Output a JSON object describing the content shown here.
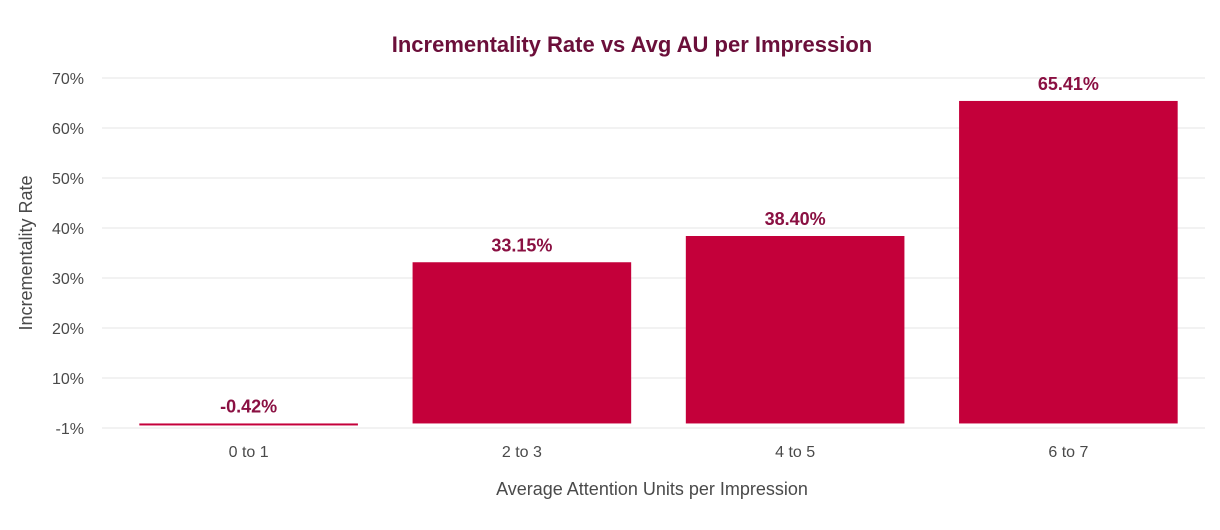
{
  "chart_data": {
    "type": "bar",
    "title": "Incrementality Rate vs Avg AU per Impression",
    "xlabel": "Average Attention Units per Impression",
    "ylabel": "Incrementality Rate",
    "categories": [
      "0 to 1",
      "2 to 3",
      "4 to 5",
      "6 to 7"
    ],
    "values": [
      -0.42,
      33.15,
      38.4,
      65.41
    ],
    "data_labels": [
      "-0.42%",
      "33.15%",
      "38.40%",
      "65.41%"
    ],
    "ylim": [
      -1,
      70
    ],
    "y_ticks": [
      -1,
      10,
      20,
      30,
      40,
      50,
      60,
      70
    ],
    "y_tick_labels": [
      "-1%",
      "10%",
      "20%",
      "30%",
      "40%",
      "50%",
      "60%",
      "70%"
    ],
    "grid": true,
    "legend": "none",
    "bar_color": "#c4003a"
  }
}
